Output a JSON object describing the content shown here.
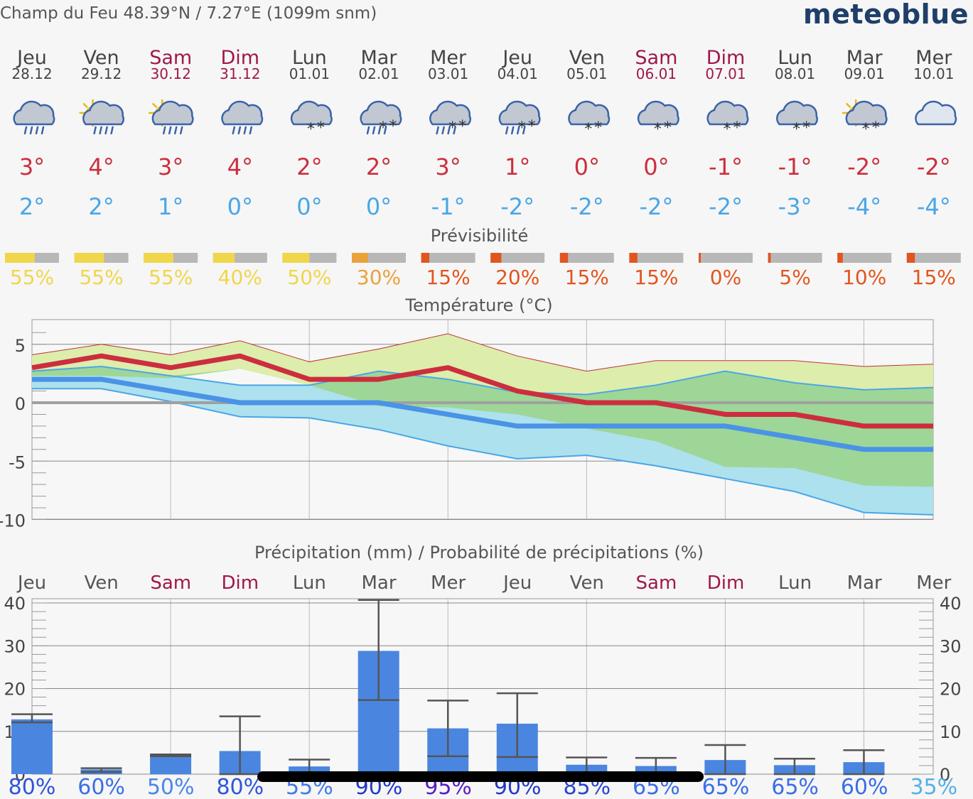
{
  "header": {
    "location": "Champ du Feu  48.39°N / 7.27°E (1099m snm)",
    "brand": "meteoblue"
  },
  "days": [
    {
      "name": "Jeu",
      "date": "28.12",
      "weekend": false,
      "icon": "rain-cloud-icon",
      "tmax": "3°",
      "tmin": "2°",
      "predictability": "55%",
      "pred_value": 55,
      "pred_color": "#f0d64a",
      "precip_prob": "80%",
      "prob_color": "#2e55d9"
    },
    {
      "name": "Ven",
      "date": "29.12",
      "weekend": false,
      "icon": "sun-cloud-rain-icon",
      "tmax": "4°",
      "tmin": "2°",
      "predictability": "55%",
      "pred_value": 55,
      "pred_color": "#f0d64a",
      "precip_prob": "60%",
      "prob_color": "#3a6ee6"
    },
    {
      "name": "Sam",
      "date": "30.12",
      "weekend": true,
      "icon": "sun-cloud-rain-icon",
      "tmax": "3°",
      "tmin": "1°",
      "predictability": "55%",
      "pred_value": 55,
      "pred_color": "#f0d64a",
      "precip_prob": "50%",
      "prob_color": "#4b86ea"
    },
    {
      "name": "Dim",
      "date": "31.12",
      "weekend": true,
      "icon": "rain-cloud-icon",
      "tmax": "4°",
      "tmin": "0°",
      "predictability": "40%",
      "pred_value": 40,
      "pred_color": "#f0d64a",
      "precip_prob": "80%",
      "prob_color": "#2e55d9"
    },
    {
      "name": "Lun",
      "date": "01.01",
      "weekend": false,
      "icon": "snow-cloud-icon",
      "tmax": "2°",
      "tmin": "0°",
      "predictability": "50%",
      "pred_value": 50,
      "pred_color": "#f0d64a",
      "precip_prob": "55%",
      "prob_color": "#4278e8"
    },
    {
      "name": "Mar",
      "date": "02.01",
      "weekend": false,
      "icon": "sleet-cloud-icon",
      "tmax": "2°",
      "tmin": "0°",
      "predictability": "30%",
      "pred_value": 30,
      "pred_color": "#eaa23c",
      "precip_prob": "90%",
      "prob_color": "#2239c9"
    },
    {
      "name": "Mer",
      "date": "03.01",
      "weekend": false,
      "icon": "sleet-cloud-icon",
      "tmax": "3°",
      "tmin": "-1°",
      "predictability": "15%",
      "pred_value": 15,
      "pred_color": "#e2551e",
      "precip_prob": "95%",
      "prob_color": "#5a1fc2"
    },
    {
      "name": "Jeu",
      "date": "04.01",
      "weekend": false,
      "icon": "sleet-cloud-icon",
      "tmax": "1°",
      "tmin": "-2°",
      "predictability": "20%",
      "pred_value": 20,
      "pred_color": "#e2551e",
      "precip_prob": "90%",
      "prob_color": "#2239c9"
    },
    {
      "name": "Ven",
      "date": "05.01",
      "weekend": false,
      "icon": "snow-cloud-icon",
      "tmax": "0°",
      "tmin": "-2°",
      "predictability": "15%",
      "pred_value": 15,
      "pred_color": "#e2551e",
      "precip_prob": "85%",
      "prob_color": "#2646cf"
    },
    {
      "name": "Sam",
      "date": "06.01",
      "weekend": true,
      "icon": "snow-cloud-icon",
      "tmax": "0°",
      "tmin": "-2°",
      "predictability": "15%",
      "pred_value": 15,
      "pred_color": "#e2551e",
      "precip_prob": "65%",
      "prob_color": "#3a6ee6"
    },
    {
      "name": "Dim",
      "date": "07.01",
      "weekend": true,
      "icon": "snow-cloud-icon",
      "tmax": "-1°",
      "tmin": "-2°",
      "predictability": "0%",
      "pred_value": 0,
      "pred_color": "#e2551e",
      "precip_prob": "65%",
      "prob_color": "#3a6ee6"
    },
    {
      "name": "Lun",
      "date": "08.01",
      "weekend": false,
      "icon": "snow-cloud-icon",
      "tmax": "-1°",
      "tmin": "-3°",
      "predictability": "5%",
      "pred_value": 5,
      "pred_color": "#e2551e",
      "precip_prob": "65%",
      "prob_color": "#3a6ee6"
    },
    {
      "name": "Mar",
      "date": "09.01",
      "weekend": false,
      "icon": "sun-cloud-snow-icon",
      "tmax": "-2°",
      "tmin": "-4°",
      "predictability": "10%",
      "pred_value": 10,
      "pred_color": "#e2551e",
      "precip_prob": "60%",
      "prob_color": "#3a6ee6"
    },
    {
      "name": "Mer",
      "date": "10.01",
      "weekend": false,
      "icon": "cloud-icon",
      "tmax": "-2°",
      "tmin": "-4°",
      "predictability": "15%",
      "pred_value": 15,
      "pred_color": "#e2551e",
      "precip_prob": "35%",
      "prob_color": "#56b0e6"
    }
  ],
  "section_titles": {
    "predictability": "Prévisibilité",
    "temperature": "Température (°C)",
    "precipitation": "Précipitation (mm) / Probabilité de précipitations (%)"
  },
  "colors": {
    "tmax": "#cc2e3e",
    "tmin": "#4aa6e6",
    "weekend": "#a0174a",
    "bar_grey": "#b8b8b8",
    "precip_bar": "#4a86e0",
    "band_green_light": "#dcedac",
    "band_green_dark": "#9ed697",
    "band_blue": "#ade1ee",
    "zero_line": "#a0a0a0"
  },
  "chart_data": [
    {
      "type": "line",
      "title": "Température (°C)",
      "x": [
        "Jeu",
        "Ven",
        "Sam",
        "Dim",
        "Lun",
        "Mar",
        "Mer",
        "Jeu",
        "Ven",
        "Sam",
        "Dim",
        "Lun",
        "Mar",
        "Mer"
      ],
      "ylim": [
        -10,
        6
      ],
      "yticks": [
        5,
        0,
        -5,
        -10
      ],
      "grid": true,
      "series": [
        {
          "role": "max",
          "values": [
            3,
            4,
            3,
            4,
            2,
            2,
            3,
            1,
            0,
            0,
            -1,
            -1,
            -2,
            -2
          ]
        },
        {
          "role": "min",
          "values": [
            2,
            2,
            1,
            0,
            0,
            0,
            -1,
            -2,
            -2,
            -2,
            -2,
            -3,
            -4,
            -4
          ]
        },
        {
          "role": "max_spread_high",
          "values": [
            4.1,
            5,
            4.1,
            5.3,
            3.5,
            4.6,
            5.9,
            4,
            2.7,
            3.6,
            3.6,
            3.6,
            3.1,
            3.3
          ]
        },
        {
          "role": "max_spread_low",
          "values": [
            2.3,
            2.3,
            2.1,
            2.9,
            1.5,
            -0.3,
            -0.4,
            -1,
            -2.2,
            -3.3,
            -5.5,
            -5.6,
            -7.1,
            -7.2
          ]
        },
        {
          "role": "min_spread_high",
          "values": [
            2.7,
            3.1,
            2.3,
            1.5,
            1.5,
            2.7,
            2,
            0.9,
            0.7,
            1.5,
            2.7,
            1.7,
            1.1,
            1.3
          ]
        },
        {
          "role": "min_spread_low",
          "values": [
            1.2,
            1.2,
            0.1,
            -1.2,
            -1.3,
            -2.3,
            -3.7,
            -4.8,
            -4.5,
            -5.4,
            -6.5,
            -7.6,
            -9.4,
            -9.6
          ]
        }
      ]
    },
    {
      "type": "bar",
      "title": "Précipitation (mm) / Probabilité de précipitations (%)",
      "categories": [
        "Jeu",
        "Ven",
        "Sam",
        "Dim",
        "Lun",
        "Mar",
        "Mer",
        "Jeu",
        "Ven",
        "Sam",
        "Dim",
        "Lun",
        "Mar",
        "Mer"
      ],
      "values": [
        12.8,
        1.1,
        4.4,
        5.4,
        1.8,
        28.8,
        10.7,
        11.8,
        2.2,
        1.9,
        3.3,
        2.1,
        2.8,
        0
      ],
      "range_low": [
        12.1,
        0.5,
        4.2,
        0,
        0,
        17.3,
        4.2,
        4,
        0,
        0,
        0,
        0,
        0,
        null
      ],
      "range_high": [
        14,
        1.4,
        4.6,
        13.5,
        3.4,
        40.7,
        17.2,
        18.9,
        3.9,
        3.8,
        6.8,
        3.6,
        5.6,
        null
      ],
      "probability": [
        "80%",
        "60%",
        "50%",
        "80%",
        "55%",
        "90%",
        "95%",
        "90%",
        "85%",
        "65%",
        "65%",
        "65%",
        "60%",
        "35%"
      ],
      "ylim": [
        0,
        41
      ],
      "yticks": [
        40,
        30,
        20,
        10,
        0
      ],
      "grid": true
    }
  ]
}
